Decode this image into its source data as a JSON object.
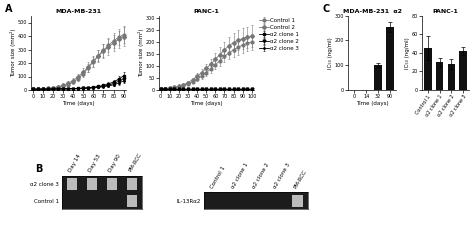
{
  "chart_data": [
    {
      "type": "line",
      "title": "MDA-MB-231",
      "annotations": [
        "A"
      ],
      "xlabel": "Time (days)",
      "ylabel": "Tumor size (mm²)",
      "x": [
        0,
        5,
        10,
        15,
        20,
        25,
        30,
        35,
        40,
        45,
        50,
        55,
        60,
        65,
        70,
        75,
        80,
        85,
        90
      ],
      "xlim": [
        -2,
        92
      ],
      "xticks": [
        0,
        10,
        20,
        30,
        40,
        50,
        60,
        70,
        80,
        90
      ],
      "ylim": [
        0,
        550
      ],
      "yticks": [
        0,
        100,
        200,
        300,
        400,
        500
      ],
      "series": [
        {
          "name": "Control 1",
          "color": "#777777",
          "marker": "circle",
          "values": [
            5,
            6,
            8,
            10,
            14,
            20,
            28,
            40,
            58,
            85,
            120,
            165,
            210,
            255,
            295,
            330,
            365,
            390,
            410
          ],
          "errors": [
            1,
            1,
            2,
            3,
            4,
            5,
            7,
            10,
            14,
            18,
            24,
            30,
            36,
            42,
            48,
            52,
            56,
            60,
            65
          ]
        },
        {
          "name": "Control 2",
          "color": "#777777",
          "marker": "diamond",
          "values": [
            5,
            6,
            9,
            12,
            17,
            24,
            35,
            50,
            70,
            98,
            132,
            172,
            212,
            252,
            288,
            318,
            348,
            375,
            395
          ],
          "errors": [
            1,
            1,
            2,
            3,
            5,
            6,
            9,
            12,
            16,
            22,
            28,
            36,
            42,
            48,
            54,
            58,
            62,
            65,
            70
          ]
        },
        {
          "name": "α2 clone 1",
          "color": "#000000",
          "marker": "square",
          "values": [
            5,
            5,
            5,
            6,
            7,
            8,
            9,
            10,
            11,
            12,
            14,
            17,
            21,
            26,
            34,
            44,
            60,
            80,
            105
          ],
          "errors": [
            1,
            1,
            1,
            1,
            1,
            1,
            2,
            2,
            2,
            3,
            3,
            4,
            5,
            7,
            9,
            12,
            16,
            22,
            28
          ]
        },
        {
          "name": "α2 clone 2",
          "color": "#000000",
          "marker": "triangle_down",
          "values": [
            5,
            5,
            5,
            6,
            6,
            7,
            8,
            9,
            10,
            11,
            13,
            15,
            18,
            22,
            28,
            36,
            48,
            64,
            84
          ],
          "errors": [
            1,
            1,
            1,
            1,
            1,
            1,
            1,
            2,
            2,
            2,
            3,
            3,
            4,
            5,
            7,
            9,
            12,
            16,
            20
          ]
        },
        {
          "name": "α2 clone 3",
          "color": "#000000",
          "marker": "point",
          "values": [
            5,
            5,
            5,
            5,
            6,
            7,
            7,
            8,
            9,
            10,
            11,
            13,
            16,
            19,
            24,
            30,
            38,
            50,
            68
          ],
          "errors": [
            1,
            1,
            1,
            1,
            1,
            1,
            1,
            1,
            2,
            2,
            2,
            3,
            3,
            4,
            5,
            6,
            8,
            11,
            15
          ]
        }
      ]
    },
    {
      "type": "line",
      "title": "PANC-1",
      "legend": "upper left",
      "xlabel": "Time (days)",
      "ylabel": "Tumor size (mm²)",
      "x": [
        0,
        5,
        10,
        15,
        20,
        25,
        30,
        35,
        40,
        45,
        50,
        55,
        60,
        65,
        70,
        75,
        80,
        85,
        90,
        95,
        100
      ],
      "xlim": [
        -2,
        102
      ],
      "xticks": [
        0,
        10,
        20,
        30,
        40,
        50,
        60,
        70,
        80,
        90,
        100
      ],
      "ylim": [
        0,
        310
      ],
      "yticks": [
        0,
        50,
        100,
        150,
        200,
        250,
        300
      ],
      "series": [
        {
          "name": "Control 1",
          "color": "#777777",
          "marker": "circle",
          "values": [
            5,
            6,
            8,
            10,
            14,
            19,
            26,
            35,
            46,
            58,
            72,
            88,
            105,
            122,
            140,
            155,
            168,
            178,
            188,
            195,
            200
          ],
          "errors": [
            1,
            1,
            2,
            2,
            3,
            4,
            5,
            7,
            9,
            11,
            13,
            16,
            19,
            22,
            25,
            27,
            29,
            31,
            33,
            34,
            35
          ]
        },
        {
          "name": "Control 2",
          "color": "#777777",
          "marker": "diamond",
          "values": [
            5,
            6,
            8,
            11,
            16,
            22,
            31,
            43,
            57,
            73,
            90,
            108,
            128,
            148,
            168,
            185,
            198,
            208,
            215,
            220,
            225
          ],
          "errors": [
            1,
            1,
            2,
            2,
            3,
            5,
            7,
            9,
            12,
            15,
            18,
            22,
            26,
            30,
            33,
            37,
            39,
            41,
            43,
            44,
            45
          ]
        },
        {
          "name": "α2 clone 1",
          "color": "#000000",
          "marker": "square",
          "values": [
            4,
            4,
            4,
            4,
            4,
            4,
            4,
            4,
            4,
            4,
            4,
            4,
            4,
            4,
            4,
            4,
            4,
            4,
            4,
            4,
            4
          ],
          "errors": [
            0.5,
            0.5,
            0.5,
            0.5,
            0.5,
            0.5,
            0.5,
            0.5,
            0.5,
            0.5,
            0.5,
            0.5,
            0.5,
            0.5,
            0.5,
            0.5,
            0.5,
            0.5,
            0.5,
            0.5,
            0.5
          ]
        },
        {
          "name": "α2 clone 2",
          "color": "#000000",
          "marker": "triangle_down",
          "values": [
            4,
            4,
            4,
            4,
            4,
            4,
            4,
            4,
            4,
            4,
            4,
            4,
            4,
            4,
            4,
            4,
            4,
            4,
            4,
            4,
            4
          ],
          "errors": [
            0.5,
            0.5,
            0.5,
            0.5,
            0.5,
            0.5,
            0.5,
            0.5,
            0.5,
            0.5,
            0.5,
            0.5,
            0.5,
            0.5,
            0.5,
            0.5,
            0.5,
            0.5,
            0.5,
            0.5,
            0.5
          ]
        },
        {
          "name": "α2 clone 3",
          "color": "#000000",
          "marker": "point",
          "values": [
            4,
            4,
            4,
            4,
            4,
            4,
            4,
            4,
            4,
            4,
            4,
            4,
            4,
            4,
            4,
            4,
            4,
            4,
            4,
            4,
            4
          ],
          "errors": [
            0.5,
            0.5,
            0.5,
            0.5,
            0.5,
            0.5,
            0.5,
            0.5,
            0.5,
            0.5,
            0.5,
            0.5,
            0.5,
            0.5,
            0.5,
            0.5,
            0.5,
            0.5,
            0.5,
            0.5,
            0.5
          ]
        }
      ]
    },
    {
      "type": "gel",
      "annotations": [
        "B"
      ],
      "categories": [
        "Day 14",
        "Day 53",
        "Day 90",
        "PM-RCC"
      ],
      "series": [
        {
          "name": "α2 clone 3",
          "values": [
            1,
            1,
            1,
            1
          ]
        },
        {
          "name": "Control 1",
          "values": [
            0,
            0,
            0,
            1
          ]
        }
      ]
    },
    {
      "type": "gel",
      "categories": [
        "Control 1",
        "α2 clone 1",
        "α2 clone 2",
        "α2 clone 3",
        "PM-RCC"
      ],
      "series": [
        {
          "name": "IL-13Rα2",
          "values": [
            0,
            0,
            0,
            0,
            1
          ]
        }
      ]
    },
    {
      "type": "bar",
      "title": "MDA-MB-231  α2",
      "annotations": [
        "C"
      ],
      "xlabel": "Time (days)",
      "ylabel": "IC₅₀ (ng/ml)",
      "categories": [
        "0",
        "14",
        "32",
        "90"
      ],
      "values": [
        0,
        0,
        100,
        255
      ],
      "errors": [
        0,
        0,
        8,
        20
      ],
      "color": "#111111",
      "ylim": [
        0,
        300
      ],
      "yticks": [
        0,
        100,
        200,
        300
      ]
    },
    {
      "type": "bar",
      "title": "PANC-1",
      "ylabel": "IC₅₀ (ng/ml)",
      "categories": [
        "Control 1",
        "α2 clone 1",
        "α2 clone 2",
        "α2 clone 3"
      ],
      "values": [
        45,
        30,
        28,
        42
      ],
      "errors": [
        13,
        5,
        5,
        4
      ],
      "color": "#111111",
      "ylim": [
        0,
        80
      ],
      "yticks": [
        0,
        20,
        40,
        60,
        80
      ]
    }
  ]
}
